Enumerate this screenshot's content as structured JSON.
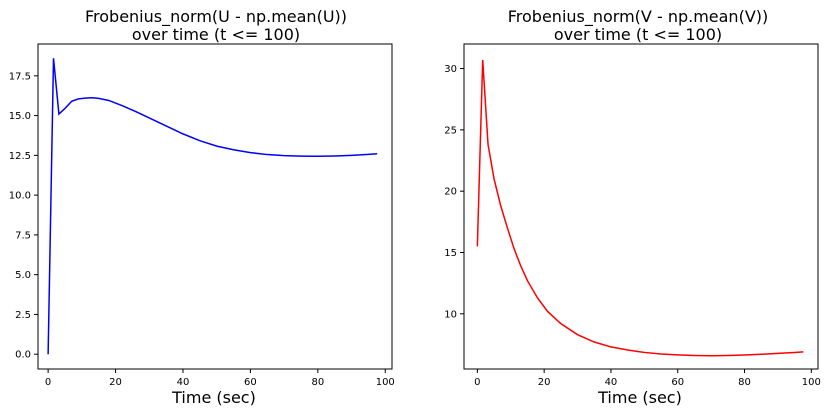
{
  "chart_data": [
    {
      "type": "line",
      "title_line1": "Frobenius_norm(U - np.mean(U))",
      "title_line2": "over time (t <= 100)",
      "xlabel": "Time (sec)",
      "ylabel": "",
      "xlim": [
        -3,
        102
      ],
      "ylim": [
        -0.93,
        19.5
      ],
      "xticks": [
        0,
        20,
        40,
        60,
        80,
        100
      ],
      "xtick_labels": [
        "0",
        "20",
        "40",
        "60",
        "80",
        "100"
      ],
      "yticks": [
        0,
        2.5,
        5,
        7.5,
        10,
        12.5,
        15,
        17.5
      ],
      "ytick_labels": [
        "0.0",
        "2.5",
        "5.0",
        "7.5",
        "10.0",
        "12.5",
        "15.0",
        "17.5"
      ],
      "grid": false,
      "color": "#0000ff",
      "series": [
        {
          "x": [
            0,
            1.6,
            3.2,
            5,
            7,
            9,
            11,
            13,
            15,
            18,
            22,
            26,
            30,
            35,
            40,
            45,
            50,
            55,
            60,
            65,
            70,
            75,
            80,
            85,
            90,
            95,
            97.6
          ],
          "y": [
            0.0,
            18.6,
            15.1,
            15.45,
            15.9,
            16.05,
            16.1,
            16.12,
            16.08,
            15.95,
            15.62,
            15.25,
            14.85,
            14.35,
            13.85,
            13.42,
            13.08,
            12.85,
            12.67,
            12.55,
            12.48,
            12.45,
            12.44,
            12.46,
            12.5,
            12.56,
            12.6
          ]
        }
      ]
    },
    {
      "type": "line",
      "title_line1": "Frobenius_norm(V - np.mean(V))",
      "title_line2": "over time (t <= 100)",
      "xlabel": "Time (sec)",
      "ylabel": "",
      "xlim": [
        -4,
        102
      ],
      "ylim": [
        5.5,
        32.0
      ],
      "xticks": [
        0,
        20,
        40,
        60,
        80,
        100
      ],
      "xtick_labels": [
        "0",
        "20",
        "40",
        "60",
        "80",
        "100"
      ],
      "yticks": [
        10,
        15,
        20,
        25,
        30
      ],
      "ytick_labels": [
        "10",
        "15",
        "20",
        "25",
        "30"
      ],
      "grid": false,
      "color": "#ff0000",
      "series": [
        {
          "x": [
            0,
            1.6,
            3.2,
            5,
            7,
            9,
            11,
            13,
            15,
            18,
            21,
            25,
            30,
            35,
            40,
            45,
            50,
            55,
            60,
            65,
            70,
            75,
            80,
            85,
            90,
            95,
            97.6
          ],
          "y": [
            15.5,
            30.7,
            23.8,
            21.0,
            18.8,
            17.0,
            15.3,
            13.9,
            12.7,
            11.3,
            10.2,
            9.2,
            8.3,
            7.7,
            7.3,
            7.05,
            6.85,
            6.72,
            6.65,
            6.6,
            6.58,
            6.6,
            6.64,
            6.7,
            6.77,
            6.85,
            6.9
          ]
        }
      ]
    }
  ]
}
